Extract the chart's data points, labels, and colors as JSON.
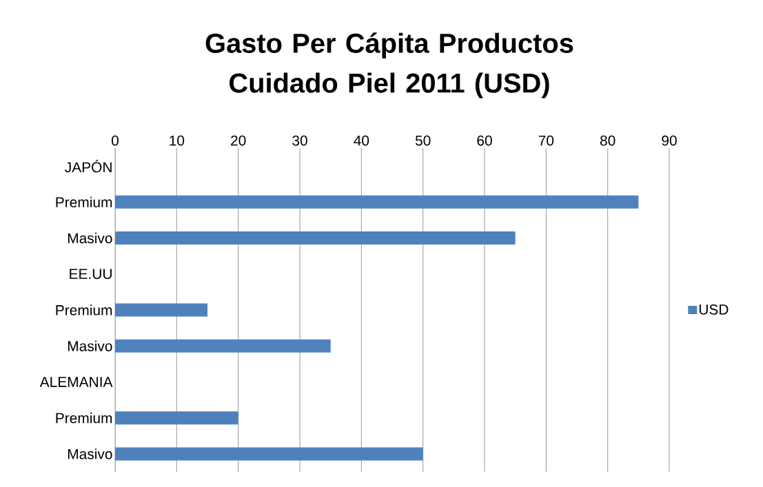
{
  "chart_data": {
    "type": "bar",
    "orientation": "horizontal",
    "title": "Gasto Per Cápita Productos Cuidado Piel 2011 (USD)",
    "categories": [
      "JAPÓN",
      "Premium",
      "Masivo",
      "EE.UU",
      "Premium",
      "Masivo",
      "ALEMANIA",
      "Premium",
      "Masivo"
    ],
    "series": [
      {
        "name": "USD",
        "color": "#4f81bd",
        "values": [
          null,
          85,
          65,
          null,
          15,
          35,
          null,
          20,
          50
        ]
      }
    ],
    "xlim": [
      0,
      90
    ],
    "xticks": [
      0,
      10,
      20,
      30,
      40,
      50,
      60,
      70,
      80,
      90
    ],
    "grid": "x",
    "legend": "right"
  }
}
